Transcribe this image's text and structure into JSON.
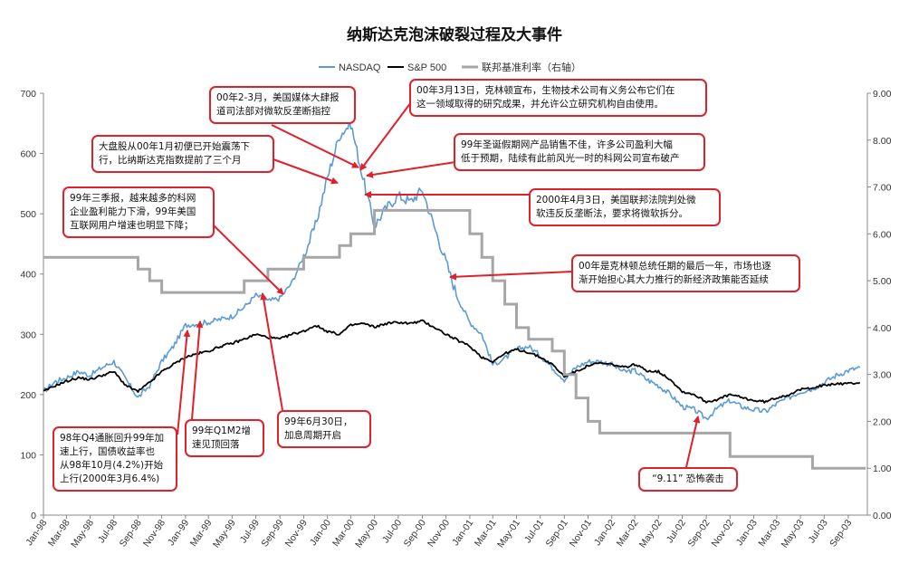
{
  "chart_data": {
    "type": "line",
    "title": "纳斯达克泡沫破裂过程及大事件",
    "x_ticks": [
      "Jan-98",
      "Mar-98",
      "May-98",
      "Jul-98",
      "Sep-98",
      "Nov-98",
      "Jan-99",
      "Mar-99",
      "May-99",
      "Jul-99",
      "Sep-99",
      "Nov-99",
      "Jan-00",
      "Mar-00",
      "May-00",
      "Jul-00",
      "Sep-00",
      "Nov-00",
      "Jan-01",
      "Mar-01",
      "May-01",
      "Jul-01",
      "Sep-01",
      "Nov-01",
      "Jan-02",
      "Mar-02",
      "May-02",
      "Jul-02",
      "Sep-02",
      "Nov-02",
      "Jan-03",
      "Mar-03",
      "May-03",
      "Jul-03",
      "Sep-03"
    ],
    "ylim_left": [
      0,
      700
    ],
    "yticks_left": [
      0,
      100,
      200,
      300,
      400,
      500,
      600,
      700
    ],
    "ylim_right": [
      0,
      9
    ],
    "yticks_right": [
      "0.00",
      "1.00",
      "2.00",
      "3.00",
      "4.00",
      "5.00",
      "6.00",
      "7.00",
      "8.00",
      "9.00"
    ],
    "grid": false,
    "legend_position": "top",
    "series": [
      {
        "name": "NASDAQ",
        "color": "#5b9bd5",
        "axis": "left",
        "x": [
          "1998-01",
          "1998-02",
          "1998-03",
          "1998-04",
          "1998-05",
          "1998-06",
          "1998-07",
          "1998-08",
          "1998-09",
          "1998-10",
          "1998-11",
          "1998-12",
          "1999-01",
          "1999-02",
          "1999-03",
          "1999-04",
          "1999-05",
          "1999-06",
          "1999-07",
          "1999-08",
          "1999-09",
          "1999-10",
          "1999-11",
          "1999-12",
          "2000-01",
          "2000-02",
          "2000-03",
          "2000-04",
          "2000-05",
          "2000-06",
          "2000-07",
          "2000-08",
          "2000-09",
          "2000-10",
          "2000-11",
          "2000-12",
          "2001-01",
          "2001-02",
          "2001-03",
          "2001-04",
          "2001-05",
          "2001-06",
          "2001-07",
          "2001-08",
          "2001-09",
          "2001-10",
          "2001-11",
          "2001-12",
          "2002-01",
          "2002-02",
          "2002-03",
          "2002-04",
          "2002-05",
          "2002-06",
          "2002-07",
          "2002-08",
          "2002-09",
          "2002-10",
          "2002-11",
          "2002-12",
          "2003-01",
          "2003-02",
          "2003-03",
          "2003-04",
          "2003-05",
          "2003-06",
          "2003-07",
          "2003-08",
          "2003-09",
          "2003-10"
        ],
        "values": [
          205,
          222,
          228,
          238,
          232,
          245,
          255,
          225,
          195,
          215,
          255,
          280,
          315,
          318,
          320,
          325,
          330,
          345,
          365,
          355,
          360,
          385,
          430,
          480,
          560,
          630,
          650,
          560,
          480,
          510,
          530,
          520,
          540,
          480,
          420,
          360,
          320,
          300,
          250,
          260,
          275,
          280,
          265,
          245,
          225,
          245,
          255,
          255,
          250,
          238,
          240,
          225,
          215,
          200,
          180,
          175,
          160,
          178,
          190,
          180,
          175,
          172,
          185,
          195,
          205,
          210,
          220,
          232,
          240,
          245
        ]
      },
      {
        "name": "S&P 500",
        "color": "#000000",
        "axis": "left",
        "x": [
          "1998-01",
          "1998-02",
          "1998-03",
          "1998-04",
          "1998-05",
          "1998-06",
          "1998-07",
          "1998-08",
          "1998-09",
          "1998-10",
          "1998-11",
          "1998-12",
          "1999-01",
          "1999-02",
          "1999-03",
          "1999-04",
          "1999-05",
          "1999-06",
          "1999-07",
          "1999-08",
          "1999-09",
          "1999-10",
          "1999-11",
          "1999-12",
          "2000-01",
          "2000-02",
          "2000-03",
          "2000-04",
          "2000-05",
          "2000-06",
          "2000-07",
          "2000-08",
          "2000-09",
          "2000-10",
          "2000-11",
          "2000-12",
          "2001-01",
          "2001-02",
          "2001-03",
          "2001-04",
          "2001-05",
          "2001-06",
          "2001-07",
          "2001-08",
          "2001-09",
          "2001-10",
          "2001-11",
          "2001-12",
          "2002-01",
          "2002-02",
          "2002-03",
          "2002-04",
          "2002-05",
          "2002-06",
          "2002-07",
          "2002-08",
          "2002-09",
          "2002-10",
          "2002-11",
          "2002-12",
          "2003-01",
          "2003-02",
          "2003-03",
          "2003-04",
          "2003-05",
          "2003-06",
          "2003-07",
          "2003-08",
          "2003-09",
          "2003-10"
        ],
        "values": [
          205,
          215,
          222,
          228,
          225,
          232,
          238,
          215,
          205,
          220,
          238,
          250,
          262,
          268,
          272,
          280,
          285,
          292,
          300,
          295,
          292,
          300,
          305,
          315,
          305,
          300,
          315,
          318,
          312,
          318,
          320,
          318,
          322,
          312,
          300,
          290,
          280,
          262,
          255,
          268,
          275,
          270,
          262,
          250,
          230,
          238,
          248,
          252,
          250,
          245,
          250,
          240,
          238,
          225,
          205,
          200,
          188,
          192,
          200,
          195,
          190,
          188,
          195,
          200,
          208,
          212,
          215,
          218,
          218,
          220
        ]
      },
      {
        "name": "联邦基准利率（右轴）",
        "color": "#a6a6a6",
        "axis": "right",
        "x": [
          "1998-01",
          "1998-09",
          "1998-10",
          "1998-11",
          "1999-06",
          "1999-08",
          "1999-11",
          "2000-02",
          "2000-03",
          "2000-05",
          "2001-01",
          "2001-02",
          "2001-03",
          "2001-04",
          "2001-05",
          "2001-06",
          "2001-08",
          "2001-09",
          "2001-10",
          "2001-11",
          "2001-12",
          "2002-11",
          "2003-06",
          "2003-10"
        ],
        "values": [
          5.5,
          5.25,
          5.0,
          4.75,
          5.0,
          5.25,
          5.5,
          5.75,
          6.0,
          6.5,
          6.0,
          5.5,
          5.0,
          4.5,
          4.0,
          3.75,
          3.5,
          3.0,
          2.5,
          2.0,
          1.75,
          1.25,
          1.0,
          1.0
        ]
      }
    ],
    "annotations": [
      {
        "id": "a1",
        "text": "00年2-3月，美国媒体大肆报\n道司法部对微软反垄断指控"
      },
      {
        "id": "a2",
        "text": "00年3月13日，克林顿宣布，生物技术公司有义务公布它们在\n这一领域取得的研究成果，并允许公立研究机构自由使用。"
      },
      {
        "id": "a3",
        "text": "大盘股从00年1月初便已开始震荡下\n行，比纳斯达克指数提前了三个月"
      },
      {
        "id": "a4",
        "text": "99年圣诞假期网产品销售不佳，许多公司盈利大幅\n低于预期，陆续有此前风光一时的科网公司宣布破产"
      },
      {
        "id": "a5",
        "text": "99年三季报，越来越多的科网\n企业盈利能力下滑，99年美国\n互联网用户增速也明显下降；"
      },
      {
        "id": "a6",
        "text": "2000年4月3日，美国联邦法院判处微\n软违反反垄断法，要求将微软拆分。"
      },
      {
        "id": "a7",
        "text": "00年是克林顿总统任期的最后一年，市场也逐\n渐开始担心其大力推行的新经济政策能否延续"
      },
      {
        "id": "a8",
        "text": "98年Q4通胀回升99年加\n速上行，国债收益率也\n从98年10月(4.2%)开始\n上行(2000年3月6.4%)"
      },
      {
        "id": "a9",
        "text": "99年Q1M2增\n速见顶回落"
      },
      {
        "id": "a10",
        "text": "99年6月30日，\n加息周期开启"
      },
      {
        "id": "a11",
        "text": "“9.11” 恐怖袭击"
      }
    ]
  }
}
